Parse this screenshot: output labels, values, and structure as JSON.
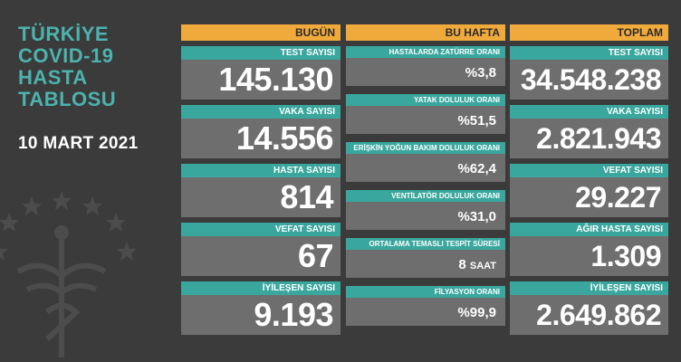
{
  "title_lines": [
    "TÜRKİYE",
    "COVID-19",
    "HASTA",
    "TABLOSU"
  ],
  "date": "10 MART 2021",
  "colors": {
    "accent_orange": "#f0a93b",
    "teal": "#3aa79e",
    "title_teal": "#4cb3ad",
    "card_gray": "#6e6e6e",
    "background": "#3b3b3b"
  },
  "emblem_icon": "ministry-of-health-emblem-icon",
  "today": {
    "header": "BUGÜN",
    "cards": [
      {
        "label": "TEST SAYISI",
        "value": "145.130"
      },
      {
        "label": "VAKA SAYISI",
        "value": "14.556"
      },
      {
        "label": "HASTA SAYISI",
        "value": "814"
      },
      {
        "label": "VEFAT SAYISI",
        "value": "67"
      },
      {
        "label": "İYİLEŞEN SAYISI",
        "value": "9.193"
      }
    ]
  },
  "this_week": {
    "header": "BU HAFTA",
    "cards": [
      {
        "label": "HASTALARDA ZATÜRRE ORANI",
        "value": "%3,8"
      },
      {
        "label": "YATAK DOLULUK ORANI",
        "value": "%51,5"
      },
      {
        "label": "ERİŞKİN YOĞUN BAKIM DOLULUK ORANI",
        "value": "%62,4"
      },
      {
        "label": "VENTİLATÖR DOLULUK ORANI",
        "value": "%31,0"
      },
      {
        "label": "ORTALAMA TEMASLI TESPİT SÜRESİ",
        "value": "8",
        "unit": "SAAT"
      },
      {
        "label": "FİLYASYON ORANI",
        "value": "%99,9"
      }
    ]
  },
  "total": {
    "header": "TOPLAM",
    "cards": [
      {
        "label": "TEST SAYISI",
        "value": "34.548.238"
      },
      {
        "label": "VAKA SAYISI",
        "value": "2.821.943"
      },
      {
        "label": "VEFAT SAYISI",
        "value": "29.227"
      },
      {
        "label": "AĞIR HASTA SAYISI",
        "value": "1.309"
      },
      {
        "label": "İYİLEŞEN SAYISI",
        "value": "2.649.862"
      }
    ]
  }
}
